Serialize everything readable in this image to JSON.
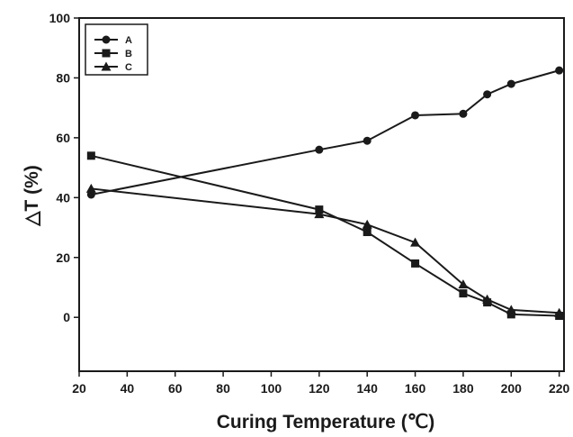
{
  "chart_data": {
    "type": "line",
    "title": "",
    "xlabel": "Curing Temperature (℃)",
    "ylabel": "△T (%)",
    "xlim": [
      20,
      222
    ],
    "ylim": [
      -18,
      100
    ],
    "xticks": [
      20,
      40,
      60,
      80,
      100,
      120,
      140,
      160,
      180,
      200,
      220
    ],
    "yticks": [
      0,
      20,
      40,
      60,
      80,
      100
    ],
    "grid": false,
    "legend_position": "top-left",
    "series": [
      {
        "name": "A",
        "marker": "circle",
        "color": "#1a1a1a",
        "x": [
          25,
          120,
          140,
          160,
          180,
          190,
          200,
          220
        ],
        "y": [
          41,
          56,
          59,
          67.5,
          68,
          74.5,
          78,
          82.5
        ]
      },
      {
        "name": "B",
        "marker": "square",
        "color": "#1a1a1a",
        "x": [
          25,
          120,
          140,
          160,
          180,
          190,
          200,
          220
        ],
        "y": [
          54,
          36,
          28.5,
          18,
          8,
          5,
          1,
          0.5
        ]
      },
      {
        "name": "C",
        "marker": "triangle",
        "color": "#1a1a1a",
        "x": [
          25,
          120,
          140,
          160,
          180,
          190,
          200,
          220
        ],
        "y": [
          43,
          34.5,
          31,
          25,
          11,
          6,
          2.5,
          1.5
        ]
      }
    ]
  }
}
